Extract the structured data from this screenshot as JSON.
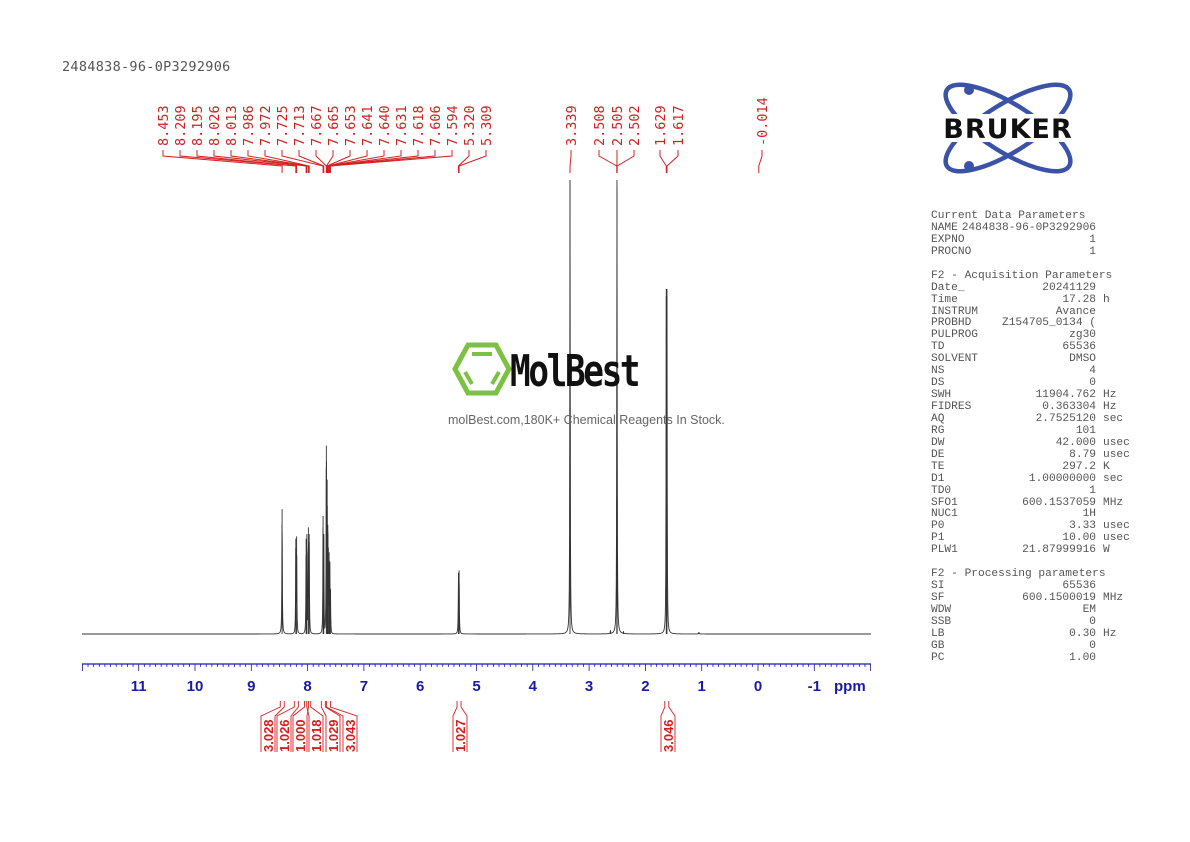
{
  "sample_title": "2484838-96-0P3292906",
  "watermark": {
    "logo_text": "MolBest",
    "tagline": "molBest.com,180K+ Chemical Reagents In Stock.",
    "logo_color": "#7dc142"
  },
  "bruker_logo": {
    "text": "BRUKER",
    "orbit_color": "#3a52a8"
  },
  "parameters": {
    "current": {
      "title": "Current Data Parameters",
      "rows": [
        {
          "k": "NAME",
          "v": "2484838-96-0P3292906",
          "u": ""
        },
        {
          "k": "EXPNO",
          "v": "1",
          "u": ""
        },
        {
          "k": "PROCNO",
          "v": "1",
          "u": ""
        }
      ]
    },
    "acquisition": {
      "title": "F2 - Acquisition Parameters",
      "rows": [
        {
          "k": "Date_",
          "v": "20241129",
          "u": ""
        },
        {
          "k": "Time",
          "v": "17.28",
          "u": "h"
        },
        {
          "k": "INSTRUM",
          "v": "Avance",
          "u": ""
        },
        {
          "k": "PROBHD",
          "v": "Z154705_0134 (",
          "u": ""
        },
        {
          "k": "PULPROG",
          "v": "zg30",
          "u": ""
        },
        {
          "k": "TD",
          "v": "65536",
          "u": ""
        },
        {
          "k": "SOLVENT",
          "v": "DMSO",
          "u": ""
        },
        {
          "k": "NS",
          "v": "4",
          "u": ""
        },
        {
          "k": "DS",
          "v": "0",
          "u": ""
        },
        {
          "k": "SWH",
          "v": "11904.762",
          "u": "Hz"
        },
        {
          "k": "FIDRES",
          "v": "0.363304",
          "u": "Hz"
        },
        {
          "k": "AQ",
          "v": "2.7525120",
          "u": "sec"
        },
        {
          "k": "RG",
          "v": "101",
          "u": ""
        },
        {
          "k": "DW",
          "v": "42.000",
          "u": "usec"
        },
        {
          "k": "DE",
          "v": "8.79",
          "u": "usec"
        },
        {
          "k": "TE",
          "v": "297.2",
          "u": "K"
        },
        {
          "k": "D1",
          "v": "1.00000000",
          "u": "sec"
        },
        {
          "k": "TD0",
          "v": "1",
          "u": ""
        },
        {
          "k": "SFO1",
          "v": "600.1537059",
          "u": "MHz"
        },
        {
          "k": "NUC1",
          "v": "1H",
          "u": ""
        },
        {
          "k": "P0",
          "v": "3.33",
          "u": "usec"
        },
        {
          "k": "P1",
          "v": "10.00",
          "u": "usec"
        },
        {
          "k": "PLW1",
          "v": "21.87999916",
          "u": "W"
        }
      ]
    },
    "processing": {
      "title": "F2 - Processing parameters",
      "rows": [
        {
          "k": "SI",
          "v": "65536",
          "u": ""
        },
        {
          "k": "SF",
          "v": "600.1500019",
          "u": "MHz"
        },
        {
          "k": "WDW",
          "v": "EM",
          "u": ""
        },
        {
          "k": "SSB",
          "v": "0",
          "u": ""
        },
        {
          "k": "LB",
          "v": "0.30",
          "u": "Hz"
        },
        {
          "k": "GB",
          "v": "0",
          "u": ""
        },
        {
          "k": "PC",
          "v": "1.00",
          "u": ""
        }
      ]
    }
  },
  "chart_data": {
    "type": "line",
    "xlabel": "ppm",
    "xlim": [
      12,
      -2
    ],
    "x_reversed": true,
    "xticks": [
      "11",
      "10",
      "9",
      "8",
      "7",
      "6",
      "5",
      "4",
      "3",
      "2",
      "1",
      "0",
      "-1"
    ],
    "y_units": "relative intensity (%)",
    "spectrum_color": "#333333",
    "axis_color": "#1a1aa8",
    "annotation_color": "#d42020",
    "peaks": [
      {
        "ppm": 8.453,
        "label": "8.453",
        "intensity": 27.5
      },
      {
        "ppm": 8.209,
        "label": "8.209",
        "intensity": 21
      },
      {
        "ppm": 8.195,
        "label": "8.195",
        "intensity": 21.5
      },
      {
        "ppm": 8.026,
        "label": "8.026",
        "intensity": 21
      },
      {
        "ppm": 8.013,
        "label": "8.013",
        "intensity": 22
      },
      {
        "ppm": 7.986,
        "label": "7.986",
        "intensity": 23.5
      },
      {
        "ppm": 7.972,
        "label": "7.972",
        "intensity": 22
      },
      {
        "ppm": 7.725,
        "label": "7.725",
        "intensity": 26
      },
      {
        "ppm": 7.713,
        "label": "7.713",
        "intensity": 22
      },
      {
        "ppm": 7.667,
        "label": "7.667",
        "intensity": 41.5
      },
      {
        "ppm": 7.665,
        "label": "7.665",
        "intensity": 38
      },
      {
        "ppm": 7.653,
        "label": "7.653",
        "intensity": 34
      },
      {
        "ppm": 7.641,
        "label": "7.641",
        "intensity": 24
      },
      {
        "ppm": 7.64,
        "label": "7.640",
        "intensity": 22
      },
      {
        "ppm": 7.631,
        "label": "7.631",
        "intensity": 19
      },
      {
        "ppm": 7.618,
        "label": "7.618",
        "intensity": 18
      },
      {
        "ppm": 7.606,
        "label": "7.606",
        "intensity": 16
      },
      {
        "ppm": 7.594,
        "label": "7.594",
        "intensity": 10
      },
      {
        "ppm": 5.32,
        "label": "5.320",
        "intensity": 13.5
      },
      {
        "ppm": 5.309,
        "label": "5.309",
        "intensity": 14
      },
      {
        "ppm": 3.339,
        "label": "3.339",
        "intensity": 100
      },
      {
        "ppm": 2.508,
        "label": "2.508",
        "intensity": 30
      },
      {
        "ppm": 2.505,
        "label": "2.505",
        "intensity": 100
      },
      {
        "ppm": 2.502,
        "label": "2.502",
        "intensity": 30
      },
      {
        "ppm": 1.629,
        "label": "1.629",
        "intensity": 76
      },
      {
        "ppm": 1.617,
        "label": "1.617",
        "intensity": 76
      },
      {
        "ppm": -0.014,
        "label": "-0.014",
        "intensity": 0
      }
    ],
    "minor_peaks": [
      {
        "ppm": 2.62,
        "intensity": 0.8
      },
      {
        "ppm": 2.39,
        "intensity": 0.6
      },
      {
        "ppm": 1.05,
        "intensity": 0.4
      }
    ],
    "integrals": [
      {
        "ppm": 8.45,
        "value": "3.028"
      },
      {
        "ppm": 8.2,
        "value": "1.026"
      },
      {
        "ppm": 8.02,
        "value": "1.000"
      },
      {
        "ppm": 7.98,
        "value": "1.018"
      },
      {
        "ppm": 7.72,
        "value": "1.029"
      },
      {
        "ppm": 7.63,
        "value": "3.043"
      },
      {
        "ppm": 5.31,
        "value": "1.027"
      },
      {
        "ppm": 1.62,
        "value": "3.046"
      }
    ]
  }
}
